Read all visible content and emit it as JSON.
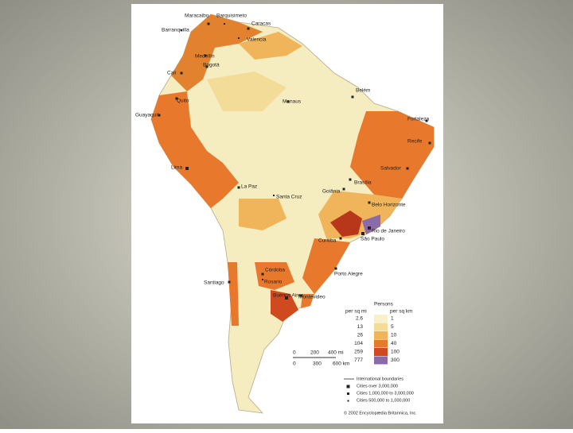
{
  "map": {
    "cities": [
      "Maracaibo",
      "Barquisimeto",
      "Caracas",
      "Barranquilla",
      "Valencia",
      "Medellín",
      "Bogotá",
      "Cali",
      "Quito",
      "Guayaquil",
      "Belém",
      "Manaus",
      "Fortaleza",
      "Recife",
      "Salvador",
      "Lima",
      "La Paz",
      "Santa Cruz",
      "Brasília",
      "Goiânia",
      "Belo Horizonte",
      "Rio de Janeiro",
      "São Paulo",
      "Curitiba",
      "Porto Alegre",
      "Córdoba",
      "Rosario",
      "Santiago",
      "Buenos Aires",
      "Montevideo"
    ],
    "legend": {
      "title": "Persons",
      "unit_sq_mi": "per sq mi",
      "unit_sq_km": "per sq km",
      "sq_mi": [
        "2.6",
        "13",
        "26",
        "104",
        "259",
        "777"
      ],
      "sq_km": [
        "1",
        "5",
        "10",
        "40",
        "100",
        "300"
      ]
    },
    "scale": {
      "mi": [
        "0",
        "200",
        "400 mi"
      ],
      "km": [
        "0",
        "300",
        "600 km"
      ]
    },
    "key": [
      "International boundaries",
      "Cities over 3,000,000",
      "Cities 1,000,000 to 3,000,000",
      "Cities 500,000 to 1,000,000"
    ],
    "credit": "© 2002 Encyclopædia Britannica, Inc."
  }
}
